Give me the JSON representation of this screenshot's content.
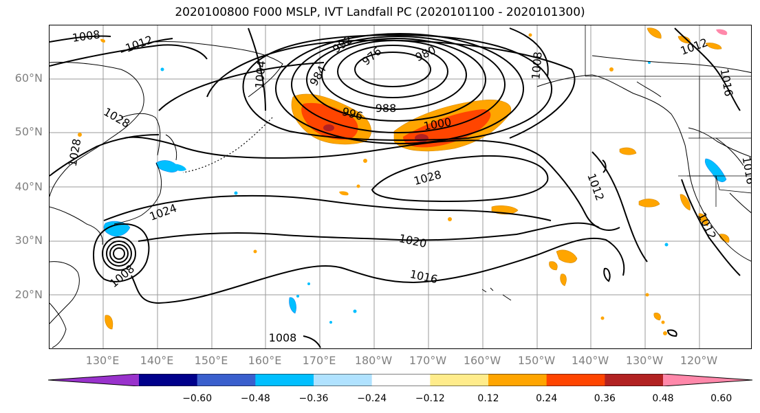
{
  "title": "2020100800 F000 MSLP, IVT Landfall PC (2020101100 - 2020101300)",
  "lat_labels": [
    "60°N",
    "50°N",
    "40°N",
    "30°N",
    "20°N"
  ],
  "lon_labels": [
    "130°E",
    "140°E",
    "150°E",
    "160°E",
    "170°E",
    "180°W",
    "170°W",
    "160°W",
    "150°W",
    "140°W",
    "130°W",
    "120°W"
  ],
  "contour_labels": [
    "1008",
    "1012",
    "1028",
    "1028",
    "1004",
    "984",
    "976",
    "992",
    "980",
    "996",
    "988",
    "1000",
    "1008",
    "1016",
    "1028",
    "1012",
    "1024",
    "1020",
    "1008",
    "1016",
    "1012",
    "1012",
    "1008",
    "1016",
    "1012"
  ],
  "colorbar": {
    "ticks": [
      "−0.60",
      "−0.48",
      "−0.36",
      "−0.24",
      "−0.12",
      "0.12",
      "0.24",
      "0.36",
      "0.48",
      "0.60"
    ],
    "colors": [
      "#9932cc",
      "#00008b",
      "#3a5fcd",
      "#00bfff",
      "#b0e2ff",
      "#ffffff",
      "#ffec8b",
      "#ffa500",
      "#ff4500",
      "#b22222",
      "#ff88aa"
    ]
  }
}
